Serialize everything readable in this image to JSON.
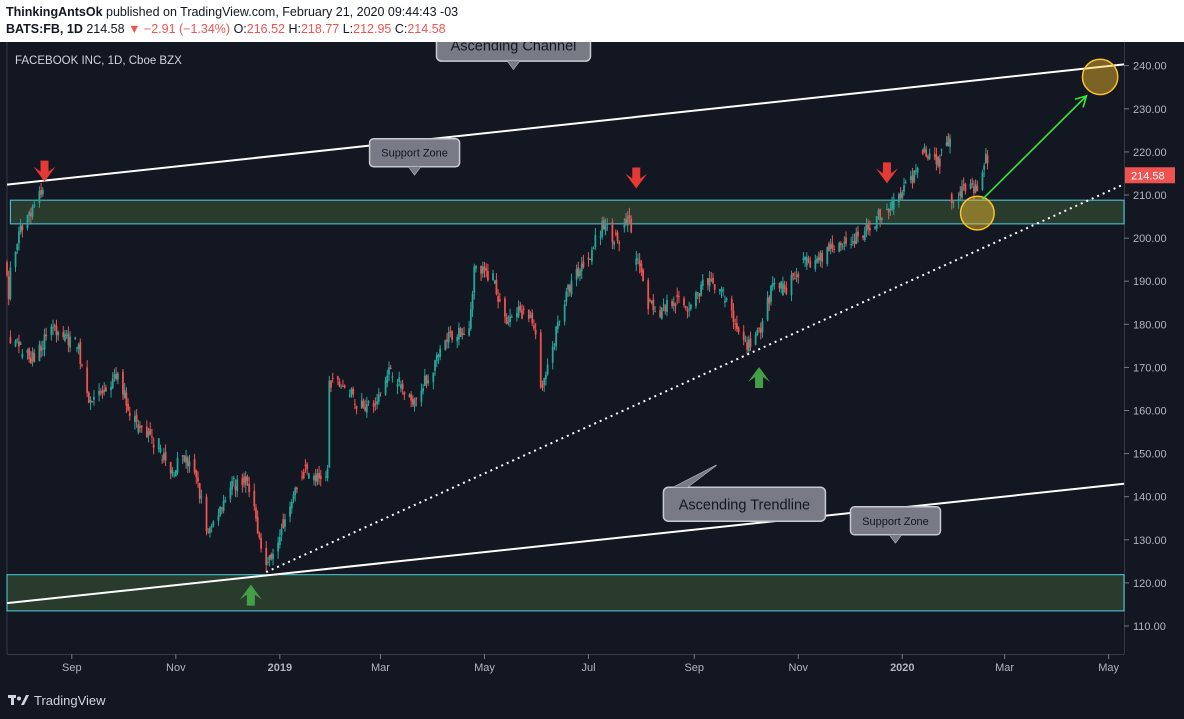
{
  "header": {
    "author": "ThinkingAntsOk",
    "published": " published on TradingView.com, February 21, 2020 09:44:43 -03",
    "symbol": "BATS:FB, 1D",
    "last": "214.58",
    "change": "▼ −2.91 (−1.34%)",
    "o_label": "O:",
    "o": "216.52",
    "h_label": "H:",
    "h": "218.77",
    "l_label": "L:",
    "l": "212.95",
    "c_label": "C:",
    "c": "214.58"
  },
  "footer": {
    "brand": "TradingView"
  },
  "colors": {
    "background": "#131722",
    "up": "#26a69a",
    "down": "#ef5350",
    "zone_fill": "#2a3d2e",
    "zone_border": "#4dd0e1",
    "arrow_up": "#43a047",
    "arrow_down": "#e53935",
    "target": "#fbc02d",
    "projection": "#39e639"
  },
  "chart_data": {
    "type": "candlestick",
    "title": "FACEBOOK INC, 1D, Cboe BZX",
    "y_ticks": [
      110,
      120,
      130,
      140,
      150,
      160,
      170,
      180,
      190,
      200,
      210,
      220,
      230,
      240
    ],
    "y_tick_labels": [
      "110.00",
      "120.00",
      "130.00",
      "140.00",
      "150.00",
      "160.00",
      "170.00",
      "180.00",
      "190.00",
      "200.00",
      "210.00",
      "220.00",
      "230.00",
      "240.00"
    ],
    "ylim": [
      103.5,
      245.5
    ],
    "xlim": [
      "2018-07-25",
      "2020-05-10"
    ],
    "x_ticks": [
      {
        "date": "2018-09-01",
        "label": "Sep",
        "bold": false
      },
      {
        "date": "2018-11-01",
        "label": "Nov",
        "bold": false
      },
      {
        "date": "2019-01-01",
        "label": "2019",
        "bold": true
      },
      {
        "date": "2019-03-01",
        "label": "Mar",
        "bold": false
      },
      {
        "date": "2019-05-01",
        "label": "May",
        "bold": false
      },
      {
        "date": "2019-07-01",
        "label": "Jul",
        "bold": false
      },
      {
        "date": "2019-09-01",
        "label": "Sep",
        "bold": false
      },
      {
        "date": "2019-11-01",
        "label": "Nov",
        "bold": false
      },
      {
        "date": "2020-01-01",
        "label": "2020",
        "bold": true
      },
      {
        "date": "2020-03-01",
        "label": "Mar",
        "bold": false
      },
      {
        "date": "2020-05-01",
        "label": "May",
        "bold": false
      }
    ],
    "last_price": {
      "value": 214.58,
      "label": "214.58"
    },
    "price_path": [
      [
        "2018-07-25",
        193
      ],
      [
        "2018-07-26",
        185
      ],
      [
        "2018-07-27",
        193
      ],
      [
        "2018-08-03",
        203
      ],
      [
        "2018-08-10",
        208
      ],
      [
        "2018-08-16",
        211
      ],
      [
        "2018-07-27",
        176
      ],
      [
        "2018-08-10",
        172
      ],
      [
        "2018-08-20",
        180
      ],
      [
        "2018-08-27",
        177
      ],
      [
        "2018-09-04",
        176
      ],
      [
        "2018-09-10",
        163
      ],
      [
        "2018-09-20",
        164
      ],
      [
        "2018-09-28",
        168
      ],
      [
        "2018-10-05",
        160
      ],
      [
        "2018-10-12",
        155
      ],
      [
        "2018-10-22",
        152
      ],
      [
        "2018-10-29",
        145
      ],
      [
        "2018-11-05",
        150
      ],
      [
        "2018-11-14",
        143
      ],
      [
        "2018-11-20",
        131
      ],
      [
        "2018-11-27",
        138
      ],
      [
        "2018-12-05",
        143
      ],
      [
        "2018-12-12",
        144
      ],
      [
        "2018-12-19",
        133
      ],
      [
        "2018-12-24",
        124
      ],
      [
        "2018-12-31",
        131
      ],
      [
        "2019-01-08",
        140
      ],
      [
        "2019-01-16",
        146
      ],
      [
        "2019-01-24",
        144
      ],
      [
        "2019-01-29",
        146
      ],
      [
        "2019-01-30",
        166
      ],
      [
        "2019-02-07",
        166
      ],
      [
        "2019-02-15",
        162
      ],
      [
        "2019-02-26",
        161
      ],
      [
        "2019-03-07",
        170
      ],
      [
        "2019-03-18",
        162
      ],
      [
        "2019-03-28",
        167
      ],
      [
        "2019-04-10",
        177
      ],
      [
        "2019-04-22",
        180
      ],
      [
        "2019-04-25",
        193
      ],
      [
        "2019-05-06",
        191
      ],
      [
        "2019-05-13",
        181
      ],
      [
        "2019-05-22",
        183
      ],
      [
        "2019-05-30",
        180
      ],
      [
        "2019-06-03",
        164
      ],
      [
        "2019-06-07",
        169
      ],
      [
        "2019-06-14",
        182
      ],
      [
        "2019-06-21",
        190
      ],
      [
        "2019-07-01",
        196
      ],
      [
        "2019-07-10",
        203
      ],
      [
        "2019-07-19",
        199
      ],
      [
        "2019-07-25",
        205
      ],
      [
        "2019-07-26",
        200
      ],
      [
        "2019-08-05",
        185
      ],
      [
        "2019-08-12",
        183
      ],
      [
        "2019-08-20",
        186
      ],
      [
        "2019-08-28",
        184
      ],
      [
        "2019-09-06",
        189
      ],
      [
        "2019-09-16",
        189
      ],
      [
        "2019-09-25",
        180
      ],
      [
        "2019-10-02",
        175
      ],
      [
        "2019-10-09",
        178
      ],
      [
        "2019-10-17",
        189
      ],
      [
        "2019-10-25",
        188
      ],
      [
        "2019-11-04",
        194
      ],
      [
        "2019-11-13",
        195
      ],
      [
        "2019-11-22",
        199
      ],
      [
        "2019-12-02",
        199
      ],
      [
        "2019-12-10",
        201
      ],
      [
        "2019-12-18",
        205
      ],
      [
        "2019-12-27",
        208
      ],
      [
        "2020-01-06",
        213
      ],
      [
        "2020-01-13",
        221
      ],
      [
        "2020-01-23",
        218
      ],
      [
        "2020-01-29",
        224
      ],
      [
        "2020-01-30",
        209
      ],
      [
        "2020-02-06",
        212
      ],
      [
        "2020-02-13",
        211
      ],
      [
        "2020-02-19",
        218
      ],
      [
        "2020-02-21",
        214.58
      ]
    ],
    "annotations": {
      "ascending_channel": {
        "upper": [
          [
            "2018-07-25",
            212.4
          ],
          [
            "2020-05-10",
            240.3
          ]
        ],
        "lower": [
          [
            "2018-07-25",
            115.3
          ],
          [
            "2020-05-10",
            143
          ]
        ],
        "label": "Ascending Channel",
        "label_anchor": [
          "2019-05-18",
          239.2
        ]
      },
      "ascending_trendline": {
        "points": [
          [
            "2018-12-24",
            122.5
          ],
          [
            "2020-05-10",
            212.5
          ]
        ],
        "label": "Ascending Trendline",
        "label_anchor": [
          "2019-09-14",
          147.3
        ]
      },
      "support_zones": [
        {
          "low": 203.3,
          "high": 208.8,
          "start": "2018-07-27",
          "label": "Support Zone",
          "label_anchor": [
            "2019-03-21",
            214.7
          ]
        },
        {
          "low": 113.5,
          "high": 121.9,
          "start": "2018-07-25",
          "label": "Support Zone",
          "label_anchor": [
            "2019-12-28",
            129.3
          ]
        }
      ],
      "arrows_down": [
        [
          "2018-08-16",
          215.2
        ],
        [
          "2019-07-29",
          213.6
        ],
        [
          "2019-12-23",
          214.8
        ]
      ],
      "arrows_up": [
        [
          "2018-12-15",
          117.5
        ],
        [
          "2019-10-09",
          168.0
        ]
      ],
      "circles": [
        {
          "center": [
            "2020-02-14",
            205.8
          ],
          "radius_value": 3.9
        },
        {
          "center": [
            "2020-04-26",
            237.4
          ],
          "radius_value": 4.1
        }
      ],
      "projection": {
        "from": [
          "2020-02-17",
          209
        ],
        "to": [
          "2020-04-18",
          233
        ]
      }
    }
  }
}
